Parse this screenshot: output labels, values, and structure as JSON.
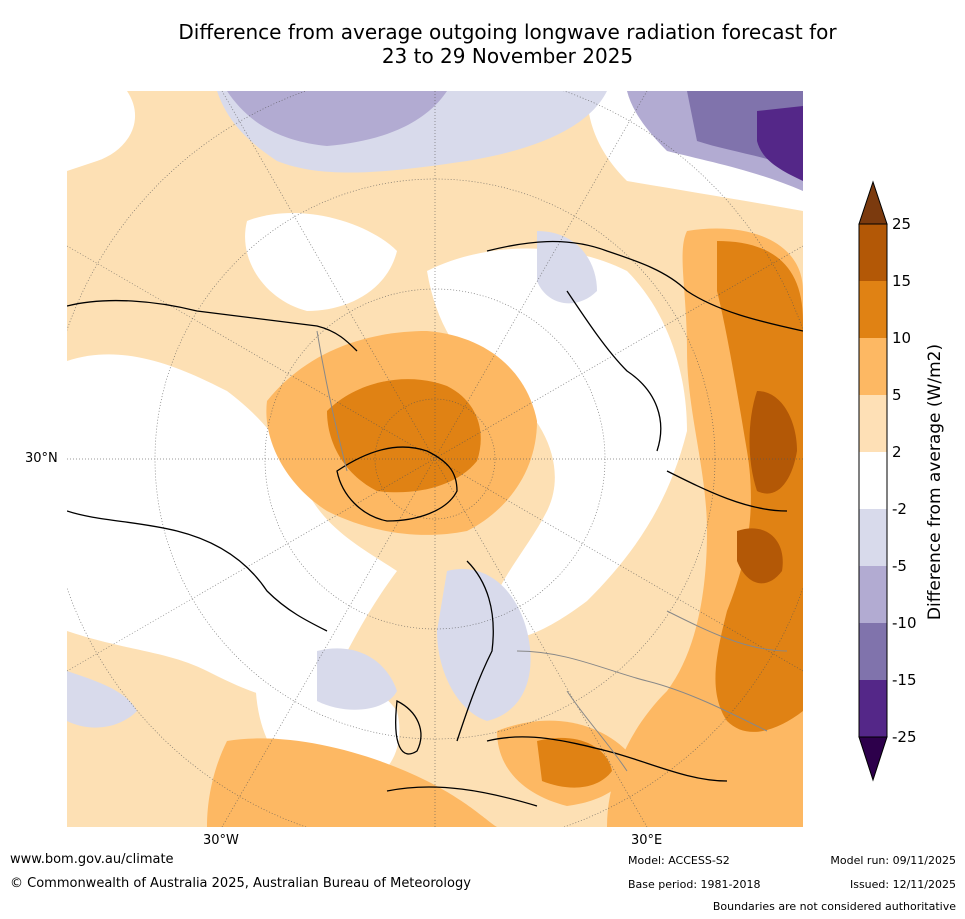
{
  "title_line1": "Difference from average outgoing longwave radiation forecast for",
  "title_line2": "23 to 29 November 2025",
  "map": {
    "lat_label": "30°N",
    "lon_label_west": "30°W",
    "lon_label_east": "30°E"
  },
  "legend": {
    "title": "Difference from average (W/m2)",
    "ticks": [
      "25",
      "15",
      "10",
      "5",
      "2",
      "-2",
      "-5",
      "-10",
      "-15",
      "-25"
    ],
    "colors": {
      "above_25": "#7b3a0e",
      "c15_25": "#b35806",
      "c10_15": "#e08214",
      "c5_10": "#fdb863",
      "c2_5": "#fee0b6",
      "neutral": "#ffffff",
      "cm2_m5": "#d8daeb",
      "cm5_m10": "#b2abd2",
      "cm10_m15": "#8073ac",
      "cm15_m25": "#542788",
      "below_m25": "#2d004b"
    }
  },
  "footer": {
    "website": "www.bom.gov.au/climate",
    "copyright": "© Commonwealth of Australia 2025, Australian Bureau of Meteorology",
    "model": "Model: ACCESS-S2",
    "base_period": "Base period: 1981-2018",
    "model_run": "Model run: 09/11/2025",
    "issued": "Issued: 12/11/2025",
    "disclaimer": "Boundaries are not considered authoritative"
  }
}
